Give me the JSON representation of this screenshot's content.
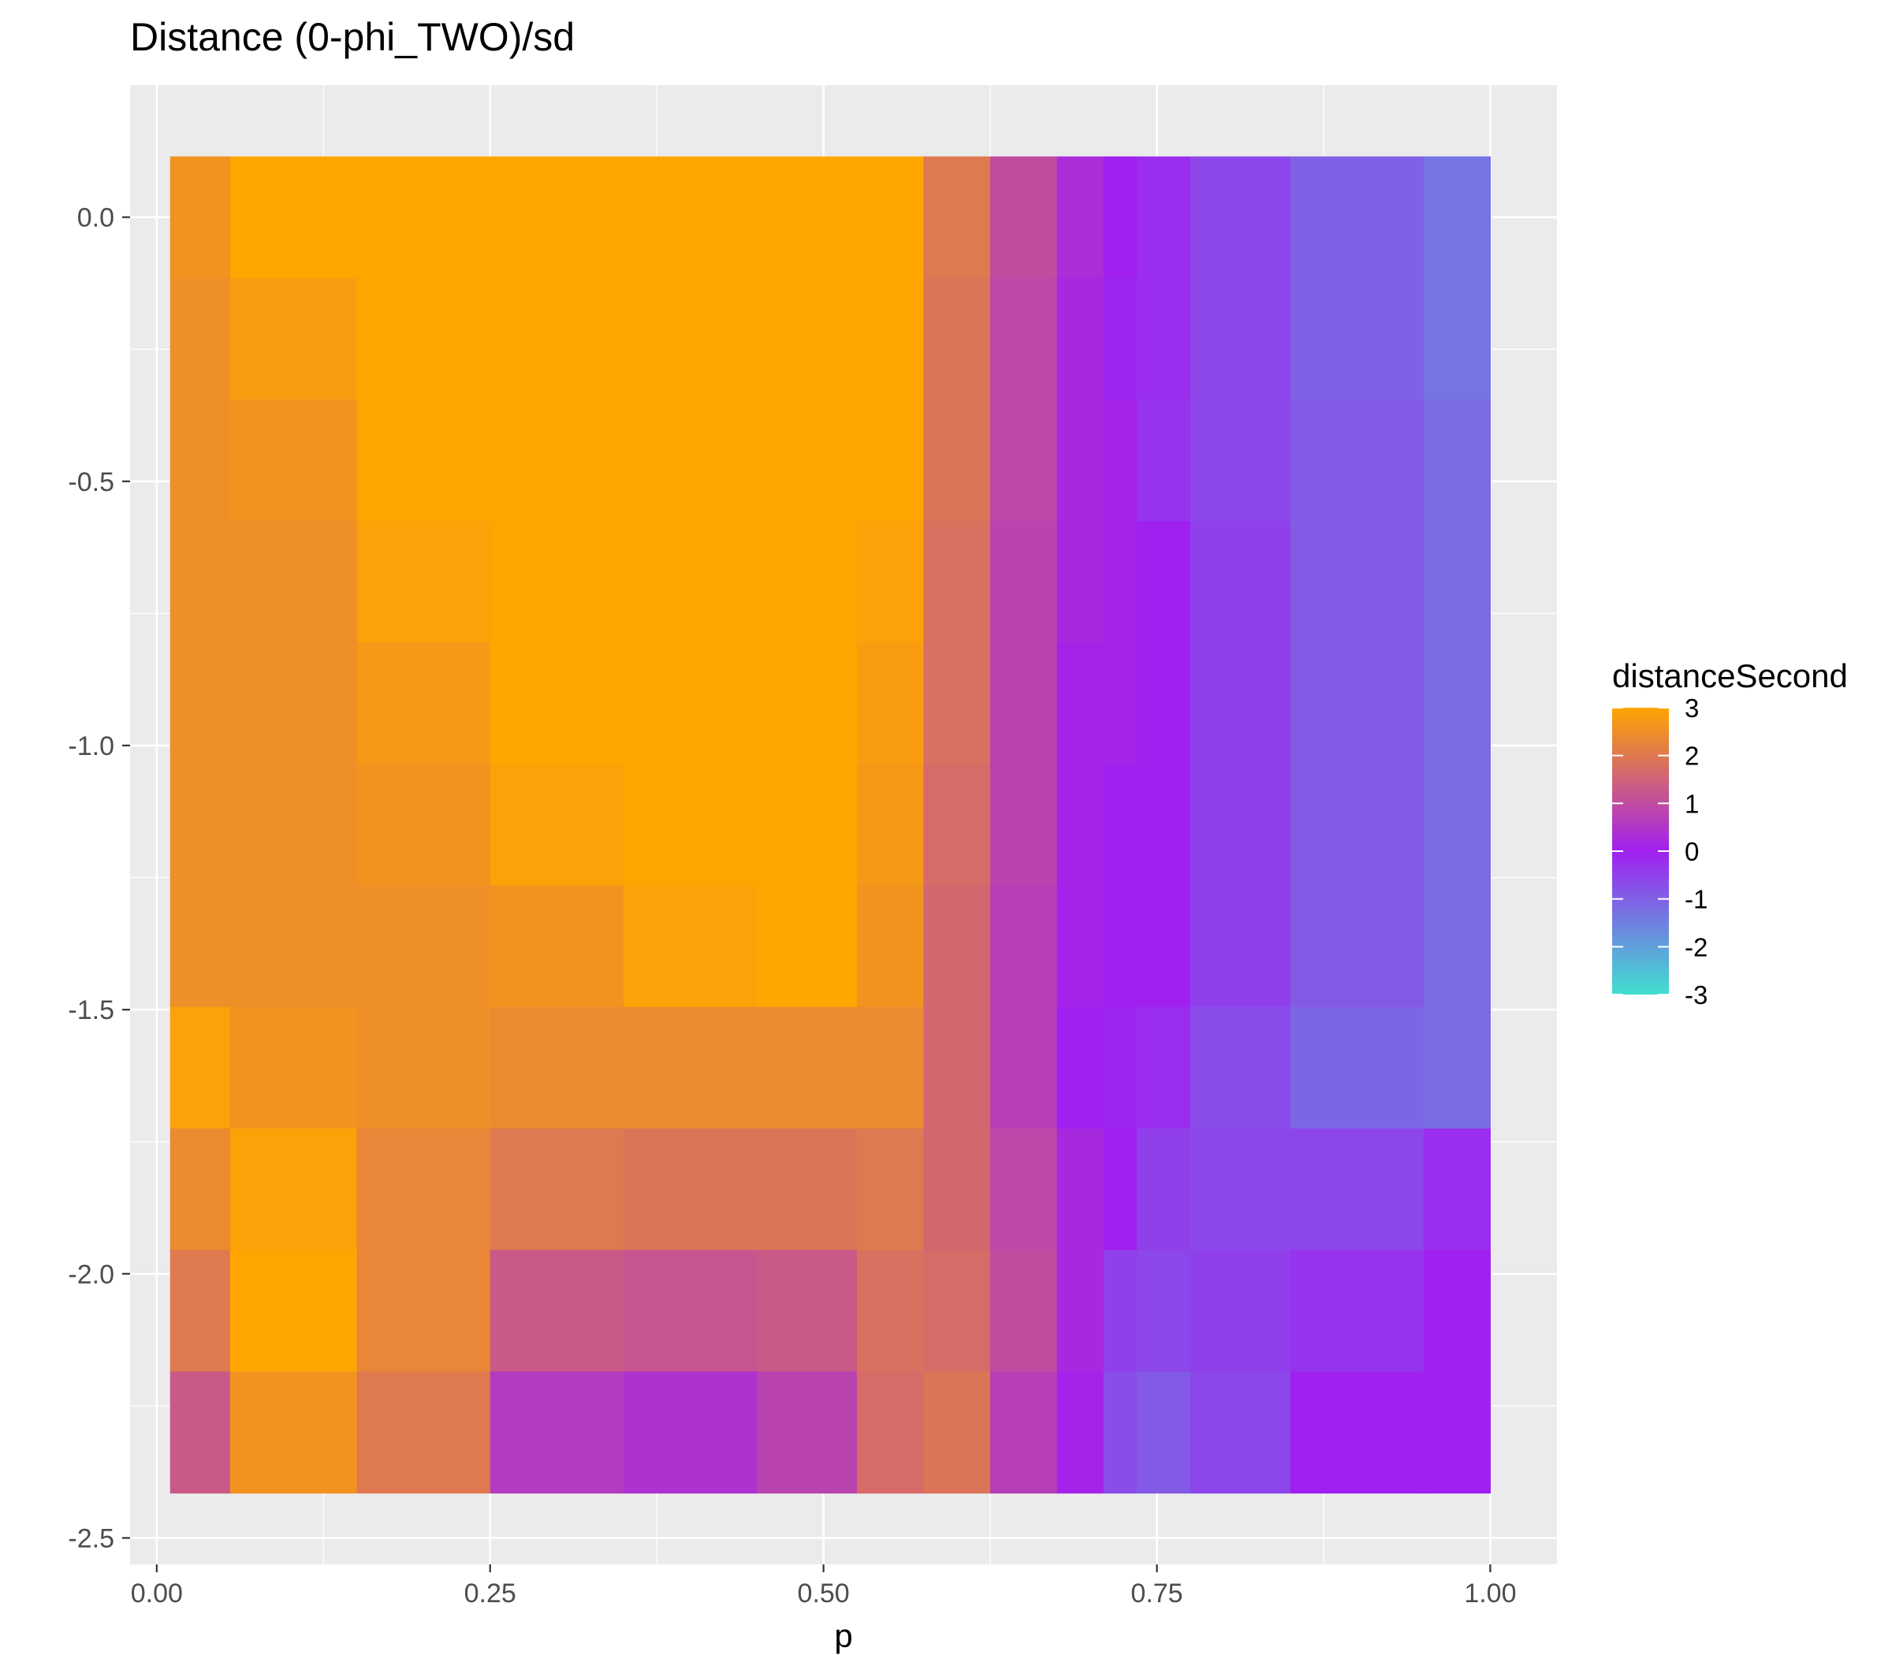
{
  "chart_data": {
    "type": "heatmap",
    "title": "Distance (0-phi_TWO)/sd",
    "xlabel": "p",
    "ylabel": "",
    "xlim": [
      -0.02,
      1.05
    ],
    "ylim": [
      -2.55,
      0.25
    ],
    "x_ticks": [
      0.0,
      0.25,
      0.5,
      0.75,
      1.0
    ],
    "x_tick_labels": [
      "0.00",
      "0.25",
      "0.50",
      "0.75",
      "1.00"
    ],
    "y_ticks": [
      0.0,
      -0.5,
      -1.0,
      -1.5,
      -2.0,
      -2.5
    ],
    "y_tick_labels": [
      "0.0",
      "-0.5",
      "-1.0",
      "-1.5",
      "-2.0",
      "-2.5"
    ],
    "grid": true,
    "x": [
      0.01,
      0.1,
      0.2,
      0.3,
      0.4,
      0.5,
      0.55,
      0.6,
      0.65,
      0.7,
      0.72,
      0.75,
      0.8,
      0.9,
      1.0
    ],
    "y": [
      0.0,
      -0.23,
      -0.46,
      -0.69,
      -0.92,
      -1.15,
      -1.38,
      -1.61,
      -1.84,
      -2.07,
      -2.3
    ],
    "values": [
      [
        2.6,
        3.0,
        3.0,
        3.0,
        3.0,
        3.0,
        3.0,
        2.0,
        1.0,
        0.3,
        0.0,
        -0.2,
        -0.6,
        -1.0,
        -1.3
      ],
      [
        2.5,
        2.8,
        3.0,
        3.0,
        3.0,
        3.0,
        3.0,
        1.9,
        0.9,
        0.2,
        -0.1,
        -0.2,
        -0.6,
        -1.0,
        -1.3
      ],
      [
        2.5,
        2.6,
        3.0,
        3.0,
        3.0,
        3.0,
        3.0,
        1.9,
        0.9,
        0.2,
        0.1,
        -0.3,
        -0.6,
        -0.9,
        -1.2
      ],
      [
        2.5,
        2.5,
        2.9,
        3.0,
        3.0,
        3.0,
        2.9,
        1.8,
        0.8,
        0.2,
        0.1,
        0.0,
        -0.5,
        -0.9,
        -1.2
      ],
      [
        2.5,
        2.5,
        2.7,
        3.0,
        3.0,
        3.0,
        2.8,
        1.8,
        0.8,
        0.1,
        0.1,
        0.0,
        -0.5,
        -0.9,
        -1.2
      ],
      [
        2.5,
        2.5,
        2.6,
        2.9,
        3.0,
        3.0,
        2.7,
        1.7,
        0.8,
        0.1,
        0.0,
        0.0,
        -0.5,
        -0.9,
        -1.2
      ],
      [
        2.5,
        2.5,
        2.5,
        2.6,
        2.9,
        3.0,
        2.6,
        1.6,
        0.7,
        0.1,
        0.0,
        0.0,
        -0.5,
        -0.9,
        -1.2
      ],
      [
        2.9,
        2.6,
        2.5,
        2.4,
        2.4,
        2.4,
        2.4,
        1.6,
        0.7,
        0.0,
        -0.1,
        -0.2,
        -0.7,
        -1.1,
        -1.2
      ],
      [
        2.4,
        2.9,
        2.3,
        2.0,
        1.9,
        1.9,
        2.0,
        1.6,
        0.9,
        0.2,
        0.0,
        -0.5,
        -0.6,
        -0.6,
        -0.2
      ],
      [
        2.0,
        3.0,
        2.3,
        1.3,
        1.2,
        1.3,
        1.8,
        1.7,
        1.0,
        0.2,
        -0.5,
        -0.6,
        -0.5,
        -0.3,
        0.0
      ],
      [
        1.3,
        2.6,
        2.0,
        0.6,
        0.4,
        0.8,
        1.7,
        1.9,
        0.7,
        0.1,
        -0.7,
        -0.9,
        -0.6,
        0.0,
        0.0
      ]
    ],
    "colorbar": {
      "title": "distanceSecond",
      "range": [
        -3,
        3
      ],
      "ticks": [
        3,
        2,
        1,
        0,
        -1,
        -2,
        -3
      ],
      "tick_labels": [
        "3",
        "2",
        "1",
        "0",
        "-1",
        "-2",
        "-3"
      ],
      "colors": {
        "high": "#FFA500",
        "mid": "#A020F0",
        "low": "#40E0D0"
      },
      "placement": "right"
    }
  }
}
